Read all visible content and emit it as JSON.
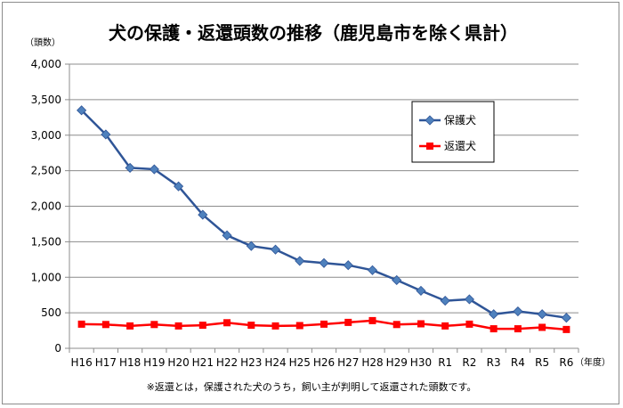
{
  "chart_data": {
    "type": "line",
    "title": "犬の保護・返還頭数の推移（鹿児島市を除く県計）",
    "y_unit": "（頭数）",
    "x_unit": "（年度）",
    "note": "※返還とは，保護された犬のうち，飼い主が判明して返還された頭数です。",
    "categories": [
      "H16",
      "H17",
      "H18",
      "H19",
      "H20",
      "H21",
      "H22",
      "H23",
      "H24",
      "H25",
      "H26",
      "H27",
      "H28",
      "H29",
      "H30",
      "R1",
      "R2",
      "R3",
      "R4",
      "R5",
      "R6"
    ],
    "ylim": [
      0,
      4000
    ],
    "y_ticks": [
      "0",
      "500",
      "1,000",
      "1,500",
      "2,000",
      "2,500",
      "3,000",
      "3,500",
      "4,000"
    ],
    "grid": true,
    "legend_position": "upper-right",
    "series": [
      {
        "name": "保護犬",
        "color": "#2f5597",
        "marker_color": "#4f81bd",
        "marker": "diamond",
        "values": [
          3350,
          3010,
          2540,
          2520,
          2280,
          1880,
          1590,
          1440,
          1390,
          1230,
          1200,
          1170,
          1100,
          960,
          810,
          670,
          690,
          480,
          520,
          480,
          430
        ]
      },
      {
        "name": "返還犬",
        "color": "#ff0000",
        "marker_color": "#ff0000",
        "marker": "square",
        "values": [
          340,
          335,
          315,
          335,
          315,
          325,
          360,
          325,
          315,
          320,
          340,
          365,
          390,
          335,
          345,
          315,
          340,
          275,
          275,
          295,
          265
        ]
      }
    ]
  }
}
